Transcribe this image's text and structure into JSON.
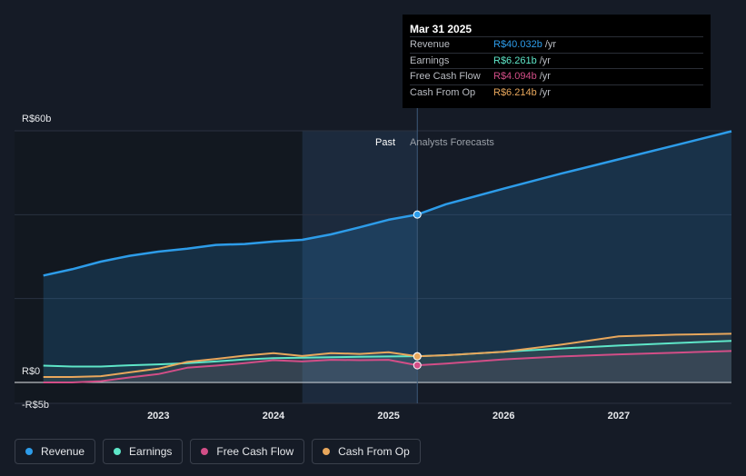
{
  "tooltip": {
    "date": "Mar 31 2025",
    "rows": [
      {
        "label": "Revenue",
        "value": "R$40.032b",
        "unit": "/yr",
        "color": "#2d9ce9"
      },
      {
        "label": "Earnings",
        "value": "R$6.261b",
        "unit": "/yr",
        "color": "#5ee6c8"
      },
      {
        "label": "Free Cash Flow",
        "value": "R$4.094b",
        "unit": "/yr",
        "color": "#d24e87"
      },
      {
        "label": "Cash From Op",
        "value": "R$6.214b",
        "unit": "/yr",
        "color": "#e8a75c"
      }
    ]
  },
  "legend": [
    {
      "label": "Revenue",
      "color": "#2d9ce9"
    },
    {
      "label": "Earnings",
      "color": "#5ee6c8"
    },
    {
      "label": "Free Cash Flow",
      "color": "#d24e87"
    },
    {
      "label": "Cash From Op",
      "color": "#e8a75c"
    }
  ],
  "chart_data": {
    "type": "line",
    "ylim": [
      -5,
      60
    ],
    "y_ticks": [
      {
        "value": 60,
        "label": "R$60b"
      },
      {
        "value": 0,
        "label": "R$0"
      },
      {
        "value": -5,
        "label": "-R$5b"
      }
    ],
    "x_ticks": [
      {
        "value": 2023,
        "label": "2023"
      },
      {
        "value": 2024,
        "label": "2024"
      },
      {
        "value": 2025,
        "label": "2025"
      },
      {
        "value": 2026,
        "label": "2026"
      },
      {
        "value": 2027,
        "label": "2027"
      }
    ],
    "xlim": [
      2021.75,
      2027.98
    ],
    "grid": true,
    "past_label": "Past",
    "forecast_label": "Analysts Forecasts",
    "past_start": 2024.25,
    "divider_x": 2025.25,
    "series": [
      {
        "name": "Revenue",
        "color": "#2d9ce9",
        "fill": true,
        "points": [
          [
            2022.0,
            25.5
          ],
          [
            2022.25,
            27.0
          ],
          [
            2022.5,
            28.8
          ],
          [
            2022.75,
            30.2
          ],
          [
            2023.0,
            31.2
          ],
          [
            2023.25,
            31.9
          ],
          [
            2023.5,
            32.8
          ],
          [
            2023.75,
            33.0
          ],
          [
            2024.0,
            33.6
          ],
          [
            2024.25,
            34.0
          ],
          [
            2024.5,
            35.3
          ],
          [
            2024.75,
            37.0
          ],
          [
            2025.0,
            38.8
          ],
          [
            2025.25,
            40.032
          ],
          [
            2025.5,
            42.5
          ],
          [
            2026.0,
            46.2
          ],
          [
            2026.5,
            49.8
          ],
          [
            2027.0,
            53.2
          ],
          [
            2027.5,
            56.6
          ],
          [
            2027.98,
            59.9
          ]
        ]
      },
      {
        "name": "Earnings",
        "color": "#5ee6c8",
        "points": [
          [
            2022.0,
            4.0
          ],
          [
            2022.25,
            3.8
          ],
          [
            2022.5,
            3.8
          ],
          [
            2022.75,
            4.1
          ],
          [
            2023.0,
            4.3
          ],
          [
            2023.25,
            4.6
          ],
          [
            2023.5,
            5.0
          ],
          [
            2023.75,
            5.5
          ],
          [
            2024.0,
            5.8
          ],
          [
            2024.25,
            5.9
          ],
          [
            2024.5,
            6.0
          ],
          [
            2024.75,
            6.1
          ],
          [
            2025.0,
            6.2
          ],
          [
            2025.25,
            6.261
          ],
          [
            2025.5,
            6.5
          ],
          [
            2026.0,
            7.3
          ],
          [
            2026.5,
            8.1
          ],
          [
            2027.0,
            8.8
          ],
          [
            2027.5,
            9.4
          ],
          [
            2027.98,
            9.9
          ]
        ]
      },
      {
        "name": "Free Cash Flow",
        "color": "#d24e87",
        "points": [
          [
            2022.0,
            0.0
          ],
          [
            2022.25,
            0.0
          ],
          [
            2022.5,
            0.3
          ],
          [
            2022.75,
            1.2
          ],
          [
            2023.0,
            2.0
          ],
          [
            2023.25,
            3.5
          ],
          [
            2023.5,
            4.0
          ],
          [
            2023.75,
            4.6
          ],
          [
            2024.0,
            5.3
          ],
          [
            2024.25,
            5.0
          ],
          [
            2024.5,
            5.4
          ],
          [
            2024.75,
            5.3
          ],
          [
            2025.0,
            5.4
          ],
          [
            2025.25,
            4.094
          ],
          [
            2025.5,
            4.5
          ],
          [
            2026.0,
            5.5
          ],
          [
            2026.5,
            6.2
          ],
          [
            2027.0,
            6.7
          ],
          [
            2027.5,
            7.1
          ],
          [
            2027.98,
            7.5
          ]
        ]
      },
      {
        "name": "Cash From Op",
        "color": "#e8a75c",
        "points": [
          [
            2022.0,
            1.3
          ],
          [
            2022.25,
            1.3
          ],
          [
            2022.5,
            1.5
          ],
          [
            2022.75,
            2.4
          ],
          [
            2023.0,
            3.3
          ],
          [
            2023.25,
            4.9
          ],
          [
            2023.5,
            5.6
          ],
          [
            2023.75,
            6.4
          ],
          [
            2024.0,
            7.0
          ],
          [
            2024.25,
            6.3
          ],
          [
            2024.5,
            7.0
          ],
          [
            2024.75,
            6.8
          ],
          [
            2025.0,
            7.2
          ],
          [
            2025.25,
            6.214
          ],
          [
            2025.5,
            6.5
          ],
          [
            2026.0,
            7.3
          ],
          [
            2026.5,
            9.0
          ],
          [
            2027.0,
            11.0
          ],
          [
            2027.5,
            11.4
          ],
          [
            2027.98,
            11.6
          ]
        ]
      }
    ]
  }
}
